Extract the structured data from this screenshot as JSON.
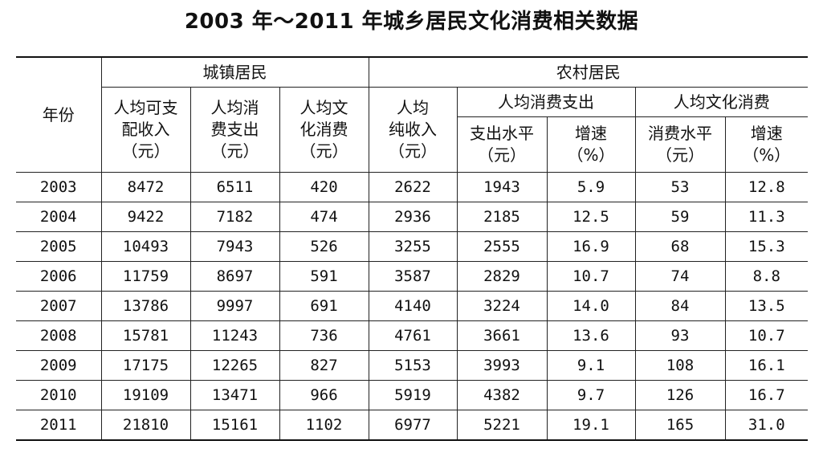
{
  "title": "2003 年～2011 年城乡居民文化消费相关数据",
  "header": {
    "year": "年份",
    "urban": "城镇居民",
    "rural": "农村居民",
    "urban_income": [
      "人均可支",
      "配收入",
      "（元）"
    ],
    "urban_spend": [
      "人均消",
      "费支出",
      "（元）"
    ],
    "urban_culture": [
      "人均文",
      "化消费",
      "（元）"
    ],
    "rural_income": [
      "人均",
      "纯收入",
      "（元）"
    ],
    "rural_spend_group": "人均消费支出",
    "rural_culture_group": "人均文化消费",
    "spend_level": [
      "支出水平",
      "（元）"
    ],
    "spend_growth": [
      "增速",
      "（%）"
    ],
    "culture_level": [
      "消费水平",
      "（元）"
    ],
    "culture_growth": [
      "增速",
      "（%）"
    ]
  },
  "rows": [
    [
      "2003",
      "8472",
      "6511",
      "420",
      "2622",
      "1943",
      "5.9",
      "53",
      "12.8"
    ],
    [
      "2004",
      "9422",
      "7182",
      "474",
      "2936",
      "2185",
      "12.5",
      "59",
      "11.3"
    ],
    [
      "2005",
      "10493",
      "7943",
      "526",
      "3255",
      "2555",
      "16.9",
      "68",
      "15.3"
    ],
    [
      "2006",
      "11759",
      "8697",
      "591",
      "3587",
      "2829",
      "10.7",
      "74",
      "8.8"
    ],
    [
      "2007",
      "13786",
      "9997",
      "691",
      "4140",
      "3224",
      "14.0",
      "84",
      "13.5"
    ],
    [
      "2008",
      "15781",
      "11243",
      "736",
      "4761",
      "3661",
      "13.6",
      "93",
      "10.7"
    ],
    [
      "2009",
      "17175",
      "12265",
      "827",
      "5153",
      "3993",
      "9.1",
      "108",
      "16.1"
    ],
    [
      "2010",
      "19109",
      "13471",
      "966",
      "5919",
      "4382",
      "9.7",
      "126",
      "16.7"
    ],
    [
      "2011",
      "21810",
      "15161",
      "1102",
      "6977",
      "5221",
      "19.1",
      "165",
      "31.0"
    ]
  ]
}
